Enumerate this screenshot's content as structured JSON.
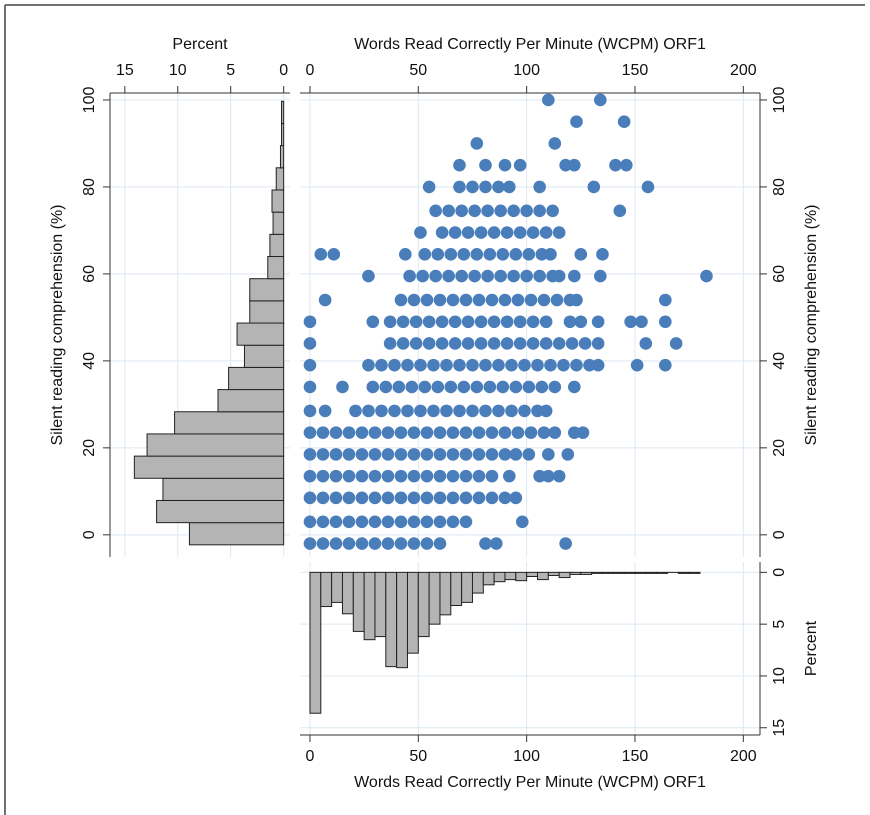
{
  "chart_data": [
    {
      "type": "scatter",
      "xlabel": "Words Read Correctly Per Minute (WCPM) ORF1",
      "ylabel": "Silent reading comprehension (%)",
      "xlim": [
        -4.6,
        207.7
      ],
      "ylim": [
        -5.1,
        101.6
      ],
      "xticks": [
        0,
        50,
        100,
        150,
        200
      ],
      "yticks": [
        0,
        20,
        40,
        60,
        80,
        100
      ],
      "grid": true,
      "color": "#4a7ebb",
      "rows": [
        {
          "y": -2,
          "x": [
            0,
            6,
            12,
            18,
            24,
            30,
            36,
            42,
            48,
            54,
            60,
            81,
            86,
            118
          ]
        },
        {
          "y": 3,
          "x": [
            0,
            6,
            12,
            18,
            24,
            30,
            36,
            42,
            48,
            54,
            60,
            66,
            72,
            98
          ]
        },
        {
          "y": 8.5,
          "x": [
            0,
            6,
            12,
            18,
            24,
            30,
            36,
            42,
            48,
            54,
            60,
            66,
            72,
            78,
            84,
            90,
            95
          ]
        },
        {
          "y": 13.5,
          "x": [
            0,
            6,
            12,
            18,
            24,
            30,
            36,
            42,
            48,
            54,
            60,
            66,
            72,
            78,
            84,
            92,
            106,
            110,
            115
          ]
        },
        {
          "y": 18.5,
          "x": [
            0,
            6,
            12,
            18,
            24,
            30,
            36,
            42,
            48,
            54,
            60,
            66,
            72,
            78,
            84,
            90,
            95,
            101,
            110,
            119
          ]
        },
        {
          "y": 23.5,
          "x": [
            0,
            6,
            12,
            18,
            24,
            30,
            36,
            42,
            48,
            54,
            60,
            66,
            72,
            78,
            84,
            90,
            96,
            102,
            108,
            113,
            122,
            126
          ]
        },
        {
          "y": 28.5,
          "x": [
            0,
            7,
            21,
            27,
            33,
            39,
            45,
            51,
            57,
            63,
            69,
            75,
            81,
            87,
            93,
            99,
            105,
            109
          ]
        },
        {
          "y": 34,
          "x": [
            0,
            15,
            29,
            35,
            41,
            47,
            53,
            59,
            65,
            71,
            77,
            83,
            89,
            95,
            101,
            107,
            113,
            122
          ]
        },
        {
          "y": 39,
          "x": [
            0,
            27,
            33,
            39,
            45,
            51,
            57,
            63,
            69,
            75,
            81,
            87,
            93,
            99,
            105,
            111,
            117,
            123,
            129,
            133,
            151,
            164
          ]
        },
        {
          "y": 44,
          "x": [
            0,
            37,
            43,
            49,
            55,
            61,
            67,
            73,
            79,
            85,
            91,
            97,
            103,
            109,
            115,
            121,
            127,
            133,
            155,
            169
          ]
        },
        {
          "y": 49,
          "x": [
            0,
            29,
            37,
            43,
            49,
            55,
            61,
            67,
            73,
            79,
            85,
            91,
            97,
            103,
            109,
            120,
            125,
            133,
            148,
            153,
            164
          ]
        },
        {
          "y": 54,
          "x": [
            7,
            42,
            48,
            54,
            60,
            66,
            72,
            78,
            84,
            90,
            96,
            102,
            108,
            114,
            120,
            123,
            164
          ]
        },
        {
          "y": 59.5,
          "x": [
            27,
            46,
            52,
            58,
            64,
            70,
            76,
            82,
            88,
            94,
            100,
            106,
            112,
            115,
            122,
            134,
            183
          ]
        },
        {
          "y": 64.5,
          "x": [
            5,
            11,
            44,
            53,
            59,
            65,
            71,
            77,
            83,
            89,
            95,
            101,
            107,
            111,
            125,
            135
          ]
        },
        {
          "y": 69.5,
          "x": [
            51,
            61,
            67,
            73,
            79,
            85,
            91,
            97,
            103,
            109,
            115
          ]
        },
        {
          "y": 74.5,
          "x": [
            58,
            64,
            70,
            76,
            82,
            88,
            94,
            100,
            106,
            112,
            143
          ]
        },
        {
          "y": 80,
          "x": [
            55,
            69,
            75,
            81,
            87,
            92,
            106,
            131,
            156
          ]
        },
        {
          "y": 85,
          "x": [
            69,
            81,
            90,
            97,
            118,
            122,
            141,
            146
          ]
        },
        {
          "y": 90,
          "x": [
            77,
            113
          ]
        },
        {
          "y": 95,
          "x": [
            123,
            145
          ]
        },
        {
          "y": 100,
          "x": [
            110,
            134
          ]
        }
      ]
    },
    {
      "type": "histogram",
      "orientation": "horizontal",
      "xlabel": "Percent",
      "ylabel": "Silent reading comprehension (%)",
      "xlim": [
        16.4,
        -0.6
      ],
      "ylim": [
        -5.1,
        101.6
      ],
      "xticks": [
        15,
        10,
        5,
        0
      ],
      "yticks": [
        0,
        20,
        40,
        60,
        80,
        100
      ],
      "grid": true,
      "color": "#b4b4b4",
      "bins": [
        -2.3,
        2.8,
        7.9,
        13.0,
        18.1,
        23.2,
        28.3,
        33.4,
        38.5,
        43.6,
        48.7,
        53.8,
        58.9,
        64.0,
        69.1,
        74.2,
        79.3,
        84.4,
        89.5,
        94.6,
        99.7
      ],
      "values": [
        8.9,
        12.0,
        11.4,
        14.1,
        12.9,
        10.3,
        6.2,
        5.2,
        3.7,
        4.4,
        3.2,
        3.2,
        1.5,
        1.3,
        1.0,
        1.1,
        0.7,
        0.3,
        0.2,
        0.2
      ]
    },
    {
      "type": "histogram",
      "orientation": "vertical",
      "xlabel": "Words Read Correctly Per Minute (WCPM) ORF1",
      "ylabel": "Percent",
      "xlim": [
        -4.6,
        207.7
      ],
      "ylim": [
        -1.0,
        15.7
      ],
      "xticks": [
        0,
        50,
        100,
        150,
        200
      ],
      "yticks": [
        0,
        5,
        10,
        15
      ],
      "grid": true,
      "color": "#b4b4b4",
      "bins": [
        0,
        5,
        10,
        15,
        20,
        25,
        30,
        35,
        40,
        45,
        50,
        55,
        60,
        65,
        70,
        75,
        80,
        85,
        90,
        95,
        100,
        105,
        110,
        115,
        120,
        125,
        130,
        135,
        140,
        145,
        150,
        155,
        160,
        165,
        170,
        175,
        180
      ],
      "values": [
        13.6,
        3.3,
        2.9,
        4.0,
        5.7,
        6.5,
        6.2,
        9.1,
        9.2,
        7.8,
        6.2,
        5.0,
        4.1,
        3.2,
        2.9,
        2.0,
        1.2,
        0.9,
        0.7,
        0.8,
        0.4,
        0.7,
        0.3,
        0.5,
        0.2,
        0.2,
        0.1,
        0.1,
        0.1,
        0.1,
        0.1,
        0.1,
        0.1,
        0,
        0.1,
        0.1
      ]
    }
  ]
}
